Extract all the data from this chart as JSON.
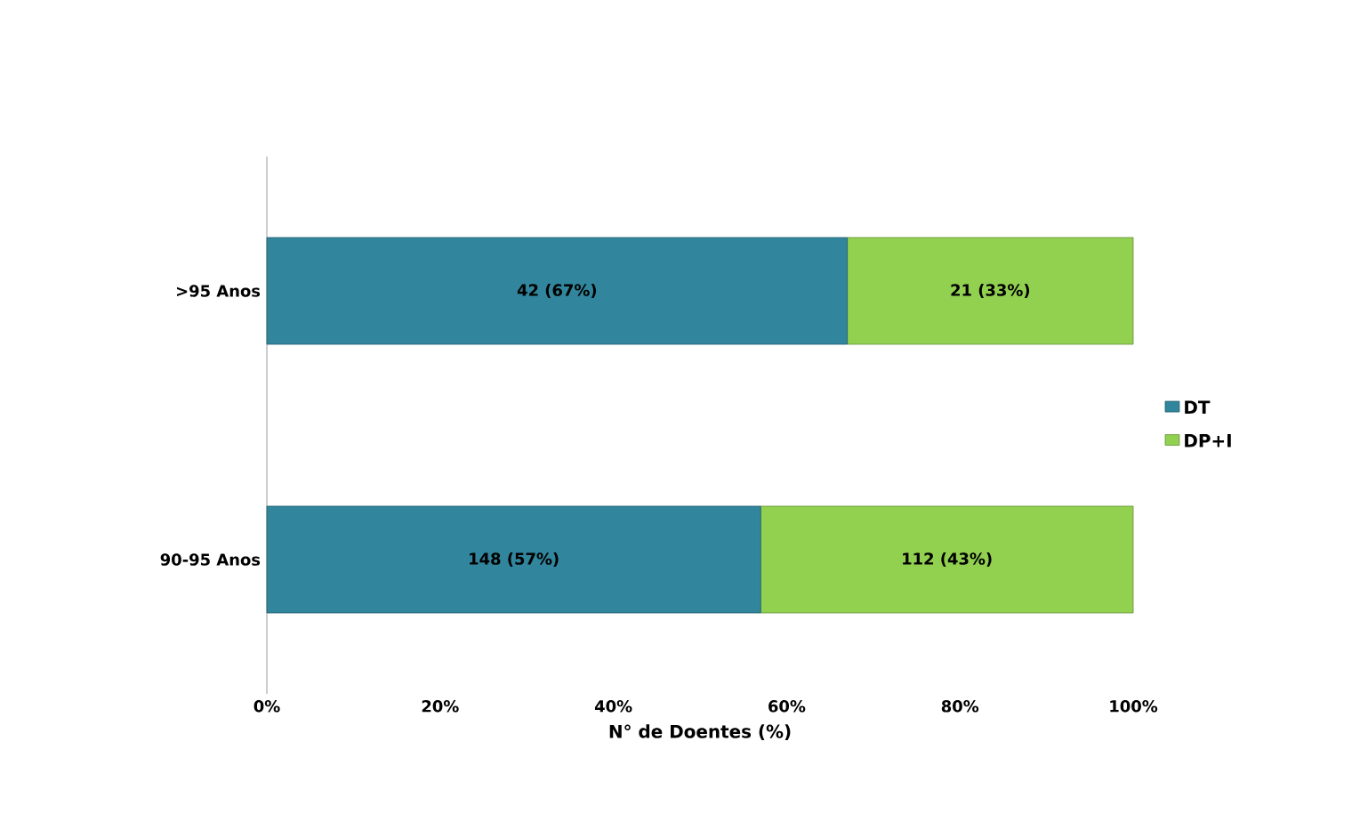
{
  "chart_data": {
    "type": "bar",
    "orientation": "horizontal",
    "stacked": true,
    "categories": [
      ">95 Anos",
      "90-95 Anos"
    ],
    "series": [
      {
        "name": "DT",
        "color": "#31859c",
        "values": [
          67,
          57
        ],
        "value_labels": [
          "42 (67%)",
          "148 (57%)"
        ]
      },
      {
        "name": "DP+I",
        "color": "#92d050",
        "values": [
          33,
          43
        ],
        "value_labels": [
          "21 (33%)",
          "112 (43%)"
        ]
      }
    ],
    "xlabel": "N° de Doentes (%)",
    "xlim": [
      0,
      100
    ],
    "xticks": [
      {
        "value": 0,
        "label": "0%"
      },
      {
        "value": 20,
        "label": "20%"
      },
      {
        "value": 40,
        "label": "40%"
      },
      {
        "value": 60,
        "label": "60%"
      },
      {
        "value": 80,
        "label": "80%"
      },
      {
        "value": 100,
        "label": "100%"
      }
    ],
    "legend": "right"
  }
}
